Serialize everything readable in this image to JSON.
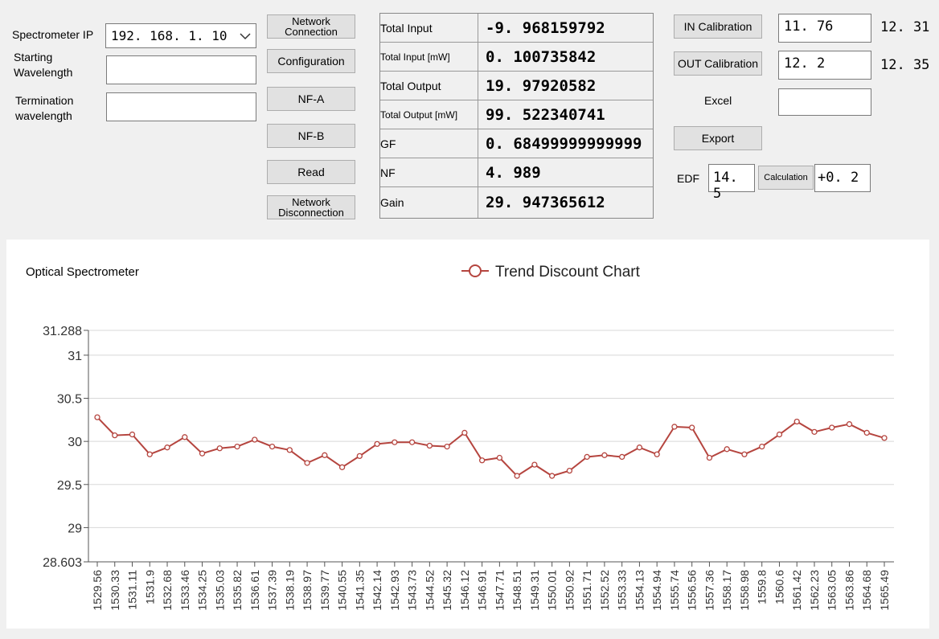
{
  "left": {
    "ip_label": "Spectrometer IP",
    "ip_value": "192. 168. 1. 10",
    "start_label_1": "Starting",
    "start_label_2": "Wavelength",
    "start_value": "",
    "term_label_1": "Termination",
    "term_label_2": "wavelength",
    "term_value": ""
  },
  "buttons": {
    "network_connection_1": "Network",
    "network_connection_2": "Connection",
    "configuration": "Configuration",
    "nf_a": "NF-A",
    "nf_b": "NF-B",
    "read": "Read",
    "network_disconnection_1": "Network",
    "network_disconnection_2": "Disconnection"
  },
  "results": [
    {
      "label": "Total Input",
      "value": "-9. 968159792"
    },
    {
      "label": "Total Input [mW]",
      "value": "0. 100735842"
    },
    {
      "label": "Total Output",
      "value": "19. 97920582"
    },
    {
      "label": "Total Output [mW]",
      "value": "99. 522340741"
    },
    {
      "label": "GF",
      "value": "0. 68499999999999"
    },
    {
      "label": "NF",
      "value": "4. 989"
    },
    {
      "label": "Gain",
      "value": "29. 947365612"
    }
  ],
  "right": {
    "in_cal_label": "IN Calibration",
    "in_cal_value": "11. 76",
    "in_cal_readout": "12. 31",
    "out_cal_label": "OUT Calibration",
    "out_cal_value": "12. 2",
    "out_cal_readout": "12. 35",
    "excel_label": "Excel",
    "excel_value": "",
    "export_label": "Export",
    "edf_label": "EDF",
    "edf_value": "14. 5",
    "calc_label": "Calculation",
    "calc_result": "+0. 2"
  },
  "chart_data": {
    "type": "line",
    "title": "Optical Spectrometer",
    "legend": "Trend Discount Chart",
    "legend_position": "top-center",
    "line_color": "#b5453f",
    "grid": true,
    "ylim": [
      28.603,
      31.288
    ],
    "y_ticks": [
      "31.288",
      "31",
      "30.5",
      "30",
      "29.5",
      "29",
      "28.603"
    ],
    "y_tick_values": [
      31.288,
      31,
      30.5,
      30,
      29.5,
      29,
      28.603
    ],
    "x": [
      "1529.56",
      "1530.33",
      "1531.11",
      "1531.9",
      "1532.68",
      "1533.46",
      "1534.25",
      "1535.03",
      "1535.82",
      "1536.61",
      "1537.39",
      "1538.19",
      "1538.97",
      "1539.77",
      "1540.55",
      "1541.35",
      "1542.14",
      "1542.93",
      "1543.73",
      "1544.52",
      "1545.32",
      "1546.12",
      "1546.91",
      "1547.71",
      "1548.51",
      "1549.31",
      "1550.01",
      "1550.92",
      "1551.71",
      "1552.52",
      "1553.33",
      "1554.13",
      "1554.94",
      "1555.74",
      "1556.56",
      "1557.36",
      "1558.17",
      "1558.98",
      "1559.8",
      "1560.6",
      "1561.42",
      "1562.23",
      "1563.05",
      "1563.86",
      "1564.68",
      "1565.49"
    ],
    "values": [
      30.28,
      30.07,
      30.08,
      29.85,
      29.93,
      30.05,
      29.86,
      29.92,
      29.94,
      30.02,
      29.94,
      29.9,
      29.75,
      29.84,
      29.7,
      29.83,
      29.97,
      29.99,
      29.99,
      29.95,
      29.94,
      30.1,
      29.78,
      29.81,
      29.6,
      29.73,
      29.6,
      29.66,
      29.82,
      29.84,
      29.82,
      29.93,
      29.85,
      30.17,
      30.16,
      29.81,
      29.91,
      29.85,
      29.94,
      30.08,
      30.23,
      30.11,
      30.16,
      30.2,
      30.1,
      30.04
    ]
  }
}
